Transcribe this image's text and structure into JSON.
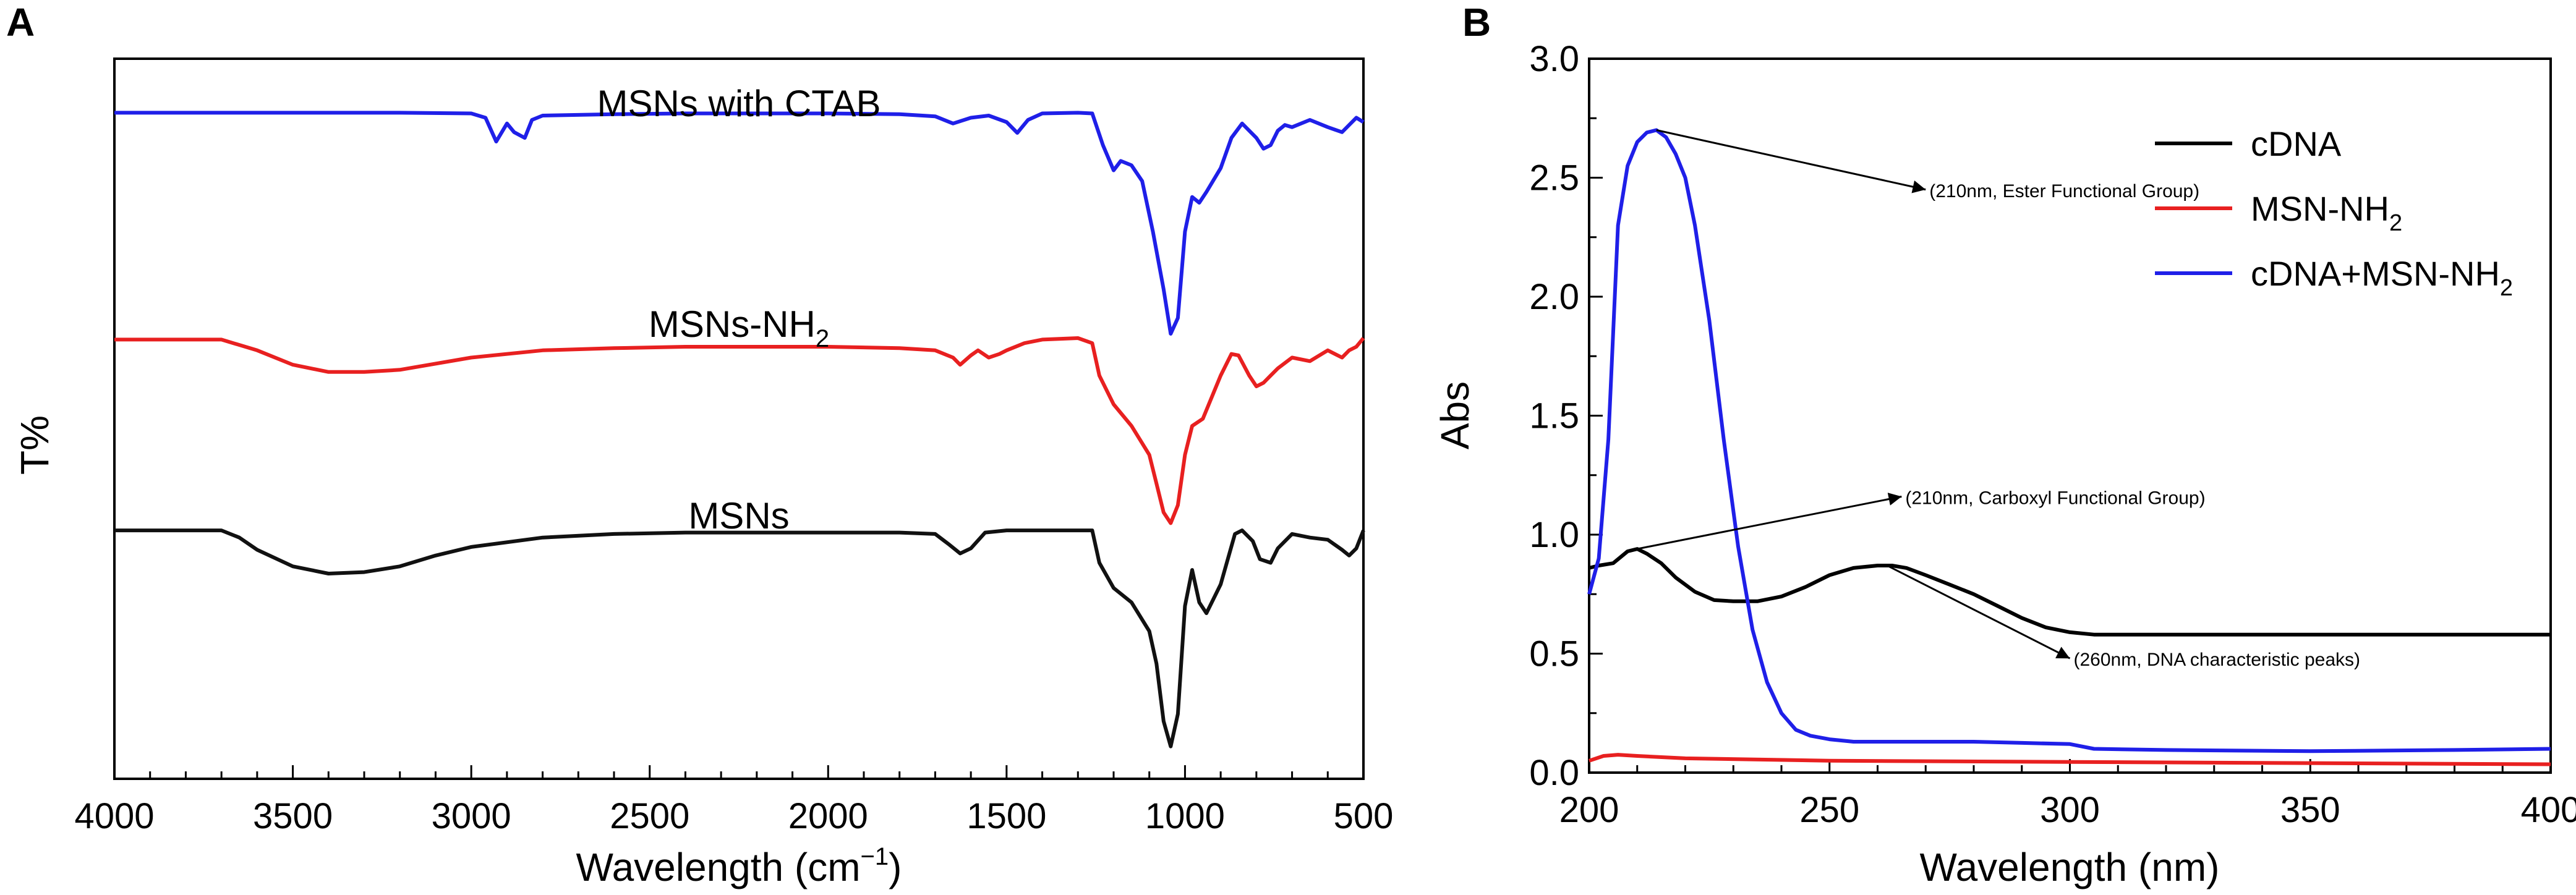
{
  "chart_data": [
    {
      "panel_label": "A",
      "type": "line",
      "title": "",
      "xlabel": "Wavelength (cm",
      "xlabel_sup": "−1",
      "xlabel_end": ")",
      "ylabel": "T%",
      "xlim": [
        4000,
        500
      ],
      "xticks": [
        4000,
        3500,
        3000,
        2500,
        2000,
        1500,
        1000,
        500
      ],
      "yticks": [],
      "ylim": [
        0,
        1
      ],
      "series": [
        {
          "name": "MSNs with CTAB",
          "label_main": "MSNs with CTAB",
          "label_sub": "",
          "color": "#1f1fe8",
          "x": [
            4000,
            3800,
            3600,
            3400,
            3200,
            3000,
            2960,
            2930,
            2900,
            2880,
            2850,
            2830,
            2800,
            2600,
            2400,
            2200,
            2000,
            1800,
            1700,
            1650,
            1600,
            1550,
            1500,
            1470,
            1440,
            1400,
            1300,
            1260,
            1230,
            1200,
            1180,
            1150,
            1120,
            1090,
            1060,
            1040,
            1020,
            1000,
            980,
            960,
            940,
            900,
            870,
            840,
            800,
            780,
            760,
            740,
            720,
            700,
            650,
            600,
            560,
            540,
            520,
            500
          ],
          "y": [
            0.925,
            0.925,
            0.925,
            0.925,
            0.925,
            0.924,
            0.918,
            0.885,
            0.91,
            0.898,
            0.89,
            0.915,
            0.921,
            0.923,
            0.924,
            0.924,
            0.924,
            0.923,
            0.92,
            0.91,
            0.918,
            0.921,
            0.912,
            0.897,
            0.915,
            0.924,
            0.925,
            0.924,
            0.88,
            0.845,
            0.858,
            0.852,
            0.83,
            0.76,
            0.68,
            0.618,
            0.64,
            0.76,
            0.808,
            0.8,
            0.815,
            0.848,
            0.89,
            0.91,
            0.89,
            0.875,
            0.88,
            0.9,
            0.908,
            0.905,
            0.915,
            0.905,
            0.898,
            0.908,
            0.918,
            0.912
          ]
        },
        {
          "name": "MSNs-NH2",
          "label_main": "MSNs-NH",
          "label_sub": "2",
          "color": "#e82020",
          "x": [
            4000,
            3800,
            3700,
            3600,
            3500,
            3400,
            3300,
            3200,
            3000,
            2800,
            2600,
            2400,
            2200,
            2000,
            1800,
            1700,
            1650,
            1630,
            1600,
            1580,
            1550,
            1520,
            1500,
            1450,
            1400,
            1300,
            1260,
            1240,
            1200,
            1150,
            1100,
            1080,
            1060,
            1040,
            1020,
            1000,
            980,
            950,
            900,
            870,
            850,
            820,
            800,
            780,
            760,
            740,
            700,
            650,
            600,
            560,
            540,
            520,
            500
          ],
          "y": [
            0.61,
            0.61,
            0.61,
            0.595,
            0.575,
            0.565,
            0.565,
            0.568,
            0.585,
            0.595,
            0.598,
            0.6,
            0.6,
            0.6,
            0.598,
            0.595,
            0.585,
            0.575,
            0.588,
            0.595,
            0.585,
            0.59,
            0.595,
            0.605,
            0.61,
            0.612,
            0.605,
            0.56,
            0.52,
            0.49,
            0.45,
            0.41,
            0.37,
            0.355,
            0.38,
            0.45,
            0.49,
            0.5,
            0.56,
            0.59,
            0.588,
            0.56,
            0.545,
            0.55,
            0.56,
            0.57,
            0.585,
            0.58,
            0.595,
            0.585,
            0.595,
            0.6,
            0.612
          ]
        },
        {
          "name": "MSNs",
          "label_main": "MSNs",
          "label_sub": "",
          "color": "#111111",
          "x": [
            4000,
            3800,
            3700,
            3650,
            3600,
            3500,
            3400,
            3300,
            3200,
            3100,
            3000,
            2800,
            2600,
            2400,
            2200,
            2000,
            1800,
            1700,
            1660,
            1630,
            1600,
            1560,
            1500,
            1400,
            1300,
            1260,
            1240,
            1200,
            1150,
            1100,
            1080,
            1060,
            1040,
            1020,
            1000,
            980,
            960,
            940,
            900,
            860,
            840,
            810,
            790,
            760,
            740,
            700,
            650,
            600,
            560,
            540,
            520,
            500
          ],
          "y": [
            0.345,
            0.345,
            0.345,
            0.335,
            0.318,
            0.295,
            0.285,
            0.287,
            0.295,
            0.31,
            0.322,
            0.335,
            0.34,
            0.342,
            0.342,
            0.342,
            0.342,
            0.34,
            0.325,
            0.313,
            0.32,
            0.342,
            0.345,
            0.345,
            0.345,
            0.345,
            0.3,
            0.265,
            0.245,
            0.205,
            0.16,
            0.08,
            0.045,
            0.09,
            0.24,
            0.29,
            0.245,
            0.23,
            0.27,
            0.34,
            0.345,
            0.33,
            0.305,
            0.3,
            0.32,
            0.34,
            0.335,
            0.332,
            0.318,
            0.31,
            0.32,
            0.345
          ]
        }
      ]
    },
    {
      "panel_label": "B",
      "type": "line",
      "title": "",
      "xlabel": "Wavelength (nm)",
      "ylabel": "Abs",
      "xlim": [
        200,
        400
      ],
      "ylim": [
        0,
        3.0
      ],
      "xticks": [
        200,
        250,
        300,
        350,
        400
      ],
      "yticks": [
        "0.0",
        "0.5",
        "1.0",
        "1.5",
        "2.0",
        "2.5",
        "3.0"
      ],
      "legend_position": "top-right",
      "series": [
        {
          "name": "cDNA",
          "label_main": "cDNA",
          "label_sub": "",
          "color": "#000000",
          "x": [
            200,
            202,
            205,
            208,
            210,
            212,
            215,
            218,
            222,
            226,
            230,
            235,
            240,
            245,
            250,
            255,
            260,
            263,
            266,
            270,
            275,
            280,
            285,
            290,
            295,
            300,
            305,
            320,
            340,
            360,
            380,
            400
          ],
          "y": [
            0.86,
            0.87,
            0.88,
            0.93,
            0.94,
            0.92,
            0.88,
            0.82,
            0.76,
            0.725,
            0.72,
            0.72,
            0.74,
            0.78,
            0.83,
            0.86,
            0.87,
            0.87,
            0.86,
            0.83,
            0.79,
            0.75,
            0.7,
            0.65,
            0.61,
            0.59,
            0.58,
            0.58,
            0.58,
            0.58,
            0.58,
            0.58
          ]
        },
        {
          "name": "MSN-NH2",
          "label_main": "MSN-NH",
          "label_sub": "2",
          "color": "#e82020",
          "x": [
            200,
            203,
            206,
            210,
            220,
            250,
            300,
            350,
            400
          ],
          "y": [
            0.05,
            0.07,
            0.075,
            0.07,
            0.06,
            0.05,
            0.045,
            0.04,
            0.035
          ]
        },
        {
          "name": "cDNA+MSN-NH2",
          "label_main": "cDNA+MSN-NH",
          "label_sub": "2",
          "color": "#1f1fe8",
          "x": [
            200,
            202,
            204,
            206,
            208,
            210,
            212,
            214,
            216,
            218,
            220,
            222,
            225,
            228,
            231,
            234,
            237,
            240,
            243,
            246,
            250,
            255,
            260,
            270,
            280,
            290,
            300,
            305,
            320,
            350,
            380,
            400
          ],
          "y": [
            0.75,
            0.9,
            1.4,
            2.3,
            2.55,
            2.65,
            2.69,
            2.7,
            2.67,
            2.6,
            2.5,
            2.3,
            1.9,
            1.4,
            0.95,
            0.6,
            0.38,
            0.25,
            0.18,
            0.155,
            0.14,
            0.13,
            0.13,
            0.13,
            0.13,
            0.125,
            0.12,
            0.1,
            0.095,
            0.09,
            0.095,
            0.1
          ]
        }
      ],
      "annotations": [
        {
          "text": "(210nm,  Ester Functional Group)",
          "point": [
            214,
            2.7
          ],
          "text_at": [
            270,
            2.45
          ]
        },
        {
          "text": "(210nm, Carboxyl  Functional Group)",
          "point": [
            210,
            0.94
          ],
          "text_at": [
            265,
            1.16
          ]
        },
        {
          "text": "(260nm, DNA characteristic peaks)",
          "point": [
            262,
            0.87
          ],
          "text_at": [
            300,
            0.48
          ]
        }
      ]
    }
  ]
}
